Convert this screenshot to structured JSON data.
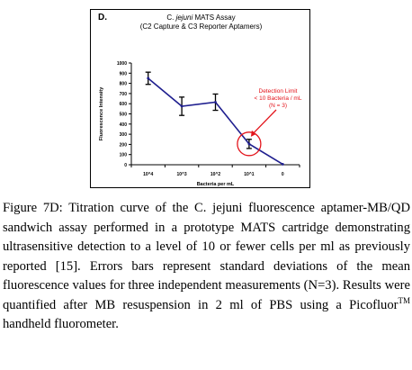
{
  "figure": {
    "panel_label": "D.",
    "title_line1_prefix": "C. ",
    "title_line1_italic": "jejuni",
    "title_line1_suffix": " MATS Assay",
    "title_line2": "(C2 Capture & C3 Reporter Aptamers)",
    "annotation_line1": "Detection Limit",
    "annotation_line2": "< 10 Bacteria / mL",
    "annotation_line3": "(N = 3)",
    "colors": {
      "series": "#1f1f8f",
      "annotation": "#e3141b",
      "axis": "#000000"
    }
  },
  "chart_data": {
    "type": "line",
    "title": "C. jejuni MATS Assay",
    "subtitle": "(C2 Capture & C3 Reporter Aptamers)",
    "xlabel": "Bacteria per mL",
    "ylabel": "Fluorescence Intensity",
    "categories": [
      "10^4",
      "10^3",
      "10^2",
      "10^1",
      "0"
    ],
    "ylim": [
      0,
      1000
    ],
    "yticks": [
      0,
      100,
      200,
      300,
      400,
      500,
      600,
      700,
      800,
      900,
      1000
    ],
    "series": [
      {
        "values": [
          850,
          575,
          615,
          205,
          5
        ],
        "errors": [
          60,
          90,
          80,
          45,
          0
        ]
      }
    ],
    "grid": false,
    "legend": "none"
  },
  "caption": {
    "label": "Figure 7D:",
    "text_part1": " Titration curve of the C. jejuni fluorescence aptamer-MB/QD sandwich assay performed in a prototype MATS cartridge demonstrating ultrasensitive detection to a level of 10 or fewer cells per ml as previously reported [15]. Errors bars represent standard deviations of the mean fluorescence values for three independent measurements (N=3). Results were quantified after MB resuspension in 2 ml of PBS using a Picofluor",
    "superscript": "TM",
    "text_part2": " handheld fluorometer."
  }
}
